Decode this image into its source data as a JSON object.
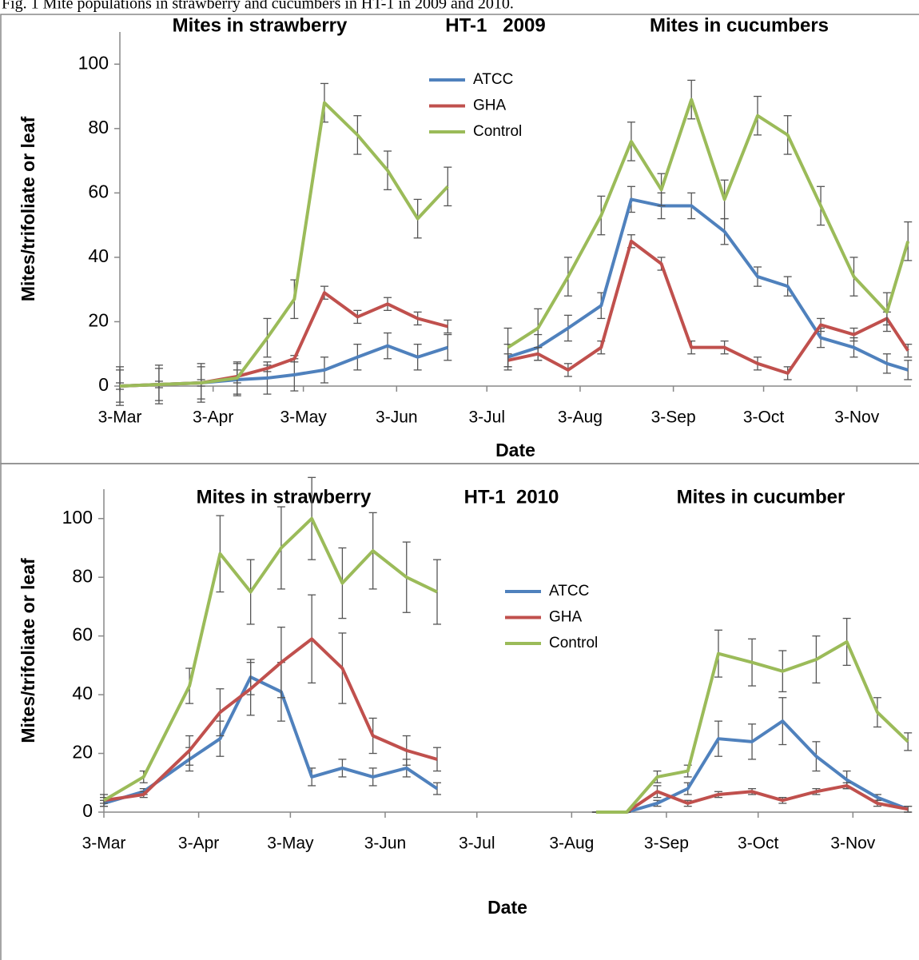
{
  "caption": "Fig. 1 Mite populations in strawberry and cucumbers in HT-1 in 2009 and 2010.",
  "chart_data": [
    {
      "type": "line",
      "annotations": [
        "Mites in strawberry",
        "HT-1   2009",
        "Mites in cucumbers"
      ],
      "xlabel": "Date",
      "ylabel": "Mites/trifoliate or leaf",
      "x": [
        62,
        75,
        89,
        101,
        111,
        120,
        130,
        141,
        151,
        161,
        171,
        184,
        191,
        201,
        211,
        222,
        232,
        242,
        252,
        263,
        274,
        284,
        295,
        306,
        317,
        324
      ],
      "xlim": [
        62,
        325
      ],
      "xticks": [
        {
          "value": 62,
          "label": "3-Mar"
        },
        {
          "value": 93,
          "label": "3-Apr"
        },
        {
          "value": 123,
          "label": "3-May"
        },
        {
          "value": 154,
          "label": "3-Jun"
        },
        {
          "value": 184,
          "label": "3-Jul"
        },
        {
          "value": 215,
          "label": "3-Aug"
        },
        {
          "value": 246,
          "label": "3-Sep"
        },
        {
          "value": 276,
          "label": "3-Oct"
        },
        {
          "value": 307,
          "label": "3-Nov"
        }
      ],
      "ylim": [
        0,
        110
      ],
      "yticks": [
        0,
        20,
        40,
        60,
        80,
        100
      ],
      "grid": false,
      "series": [
        {
          "name": "ATCC",
          "color": "#4f81bd",
          "values": [
            0,
            0.5,
            1,
            2,
            2.5,
            3.5,
            5,
            9,
            12.5,
            9,
            12,
            null,
            9,
            12,
            18,
            25,
            58,
            56,
            56,
            48,
            34,
            31,
            15,
            12,
            7,
            5
          ],
          "errors": [
            5,
            5,
            5,
            5,
            5,
            5,
            4,
            4,
            4,
            4,
            4,
            null,
            4,
            4,
            4,
            4,
            4,
            4,
            4,
            4,
            3,
            3,
            3,
            3,
            3,
            3
          ]
        },
        {
          "name": "GHA",
          "color": "#c0504d",
          "values": [
            0,
            0.5,
            1,
            3,
            5.5,
            8.5,
            29,
            21.5,
            25.5,
            21,
            18.5,
            null,
            8,
            10,
            5,
            12,
            45,
            38,
            12,
            12,
            7,
            4,
            19,
            16,
            21,
            11
          ],
          "errors": [
            1,
            1,
            1,
            2,
            1,
            1,
            2,
            2,
            2,
            2,
            2,
            null,
            2,
            2,
            2,
            2,
            2,
            2,
            2,
            2,
            2,
            2,
            2,
            2,
            2,
            2
          ]
        },
        {
          "name": "Control",
          "color": "#9bbb59",
          "values": [
            0,
            0.5,
            1,
            2.5,
            15,
            27,
            88,
            78,
            67,
            52,
            62,
            null,
            12,
            18,
            34,
            53,
            76,
            61,
            89,
            58,
            84,
            78,
            56,
            34,
            23,
            45
          ],
          "errors": [
            6,
            6,
            6,
            5,
            6,
            6,
            6,
            6,
            6,
            6,
            6,
            null,
            6,
            6,
            6,
            6,
            6,
            5,
            6,
            6,
            6,
            6,
            6,
            6,
            6,
            6
          ]
        }
      ]
    },
    {
      "type": "line",
      "annotations": [
        "Mites in strawberry",
        "HT-1  2010",
        "Mites in cucumber"
      ],
      "xlabel": "Date",
      "ylabel": "Mites/trifoliate or leaf",
      "x": [
        62,
        75,
        90,
        100,
        110,
        120,
        130,
        140,
        150,
        161,
        171,
        197,
        223,
        233,
        243,
        253,
        263,
        274,
        284,
        295,
        305,
        315,
        325
      ],
      "xlim": [
        62,
        326
      ],
      "xticks": [
        {
          "value": 62,
          "label": "3-Mar"
        },
        {
          "value": 93,
          "label": "3-Apr"
        },
        {
          "value": 123,
          "label": "3-May"
        },
        {
          "value": 154,
          "label": "3-Jun"
        },
        {
          "value": 184,
          "label": "3-Jul"
        },
        {
          "value": 215,
          "label": "3-Aug"
        },
        {
          "value": 246,
          "label": "3-Sep"
        },
        {
          "value": 276,
          "label": "3-Oct"
        },
        {
          "value": 307,
          "label": "3-Nov"
        }
      ],
      "ylim": [
        0,
        110
      ],
      "yticks": [
        0,
        20,
        40,
        60,
        80,
        100
      ],
      "grid": false,
      "series": [
        {
          "name": "ATCC",
          "color": "#4f81bd",
          "values": [
            3,
            7,
            18,
            25,
            46,
            41,
            12,
            15,
            12,
            15,
            8,
            null,
            0,
            0,
            3,
            8,
            25,
            24,
            31,
            19,
            11,
            5,
            1
          ],
          "errors": [
            1,
            1,
            4,
            6,
            6,
            10,
            3,
            3,
            3,
            3,
            2,
            null,
            0,
            0,
            1,
            2,
            6,
            6,
            8,
            5,
            3,
            1,
            1
          ]
        },
        {
          "name": "GHA",
          "color": "#c0504d",
          "values": [
            4,
            6,
            21,
            34,
            42,
            51,
            59,
            49,
            26,
            21,
            18,
            null,
            0,
            0,
            7,
            3,
            6,
            7,
            4,
            7,
            9,
            3,
            1
          ],
          "errors": [
            1,
            1,
            5,
            8,
            9,
            12,
            15,
            12,
            6,
            5,
            4,
            null,
            0,
            0,
            2,
            1,
            1,
            1,
            1,
            1,
            1,
            1,
            1
          ]
        },
        {
          "name": "Control",
          "color": "#9bbb59",
          "values": [
            4,
            12,
            43,
            88,
            75,
            90,
            100,
            78,
            89,
            80,
            75,
            null,
            0,
            0,
            12,
            14,
            54,
            51,
            48,
            52,
            58,
            34,
            24
          ],
          "errors": [
            2,
            2,
            6,
            13,
            11,
            14,
            14,
            12,
            13,
            12,
            11,
            null,
            0,
            0,
            2,
            2,
            8,
            8,
            7,
            8,
            8,
            5,
            3
          ]
        }
      ]
    }
  ]
}
